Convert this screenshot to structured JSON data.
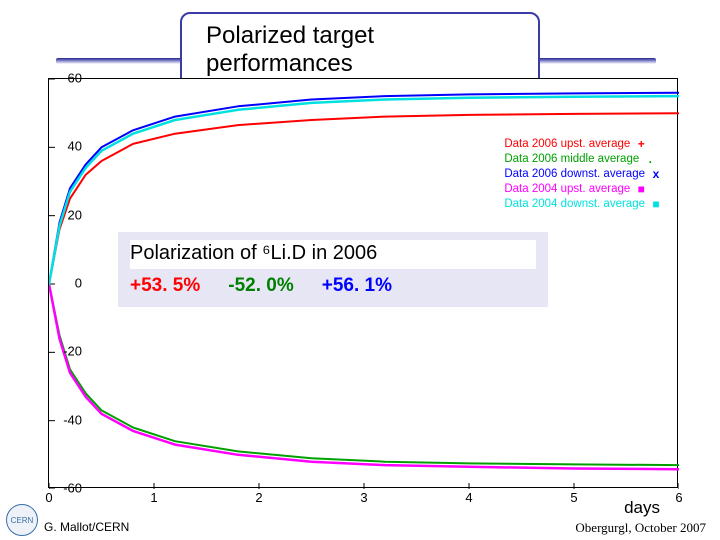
{
  "title": "Polarized target performances",
  "chart": {
    "type": "line",
    "background_color": "#ffffff",
    "axis_color": "#000000",
    "tick_fontsize": 13,
    "xlim": [
      0,
      6
    ],
    "ylim": [
      -60,
      60
    ],
    "xtick_step": 1,
    "xticks": [
      0,
      1,
      2,
      3,
      4,
      5,
      6
    ],
    "yticks": [
      -60,
      -40,
      -20,
      0,
      20,
      40,
      60
    ],
    "x_axis_label": "days",
    "series": [
      {
        "name": "Data 2006 upst. average",
        "color": "#ff0000",
        "marker": "+",
        "linewidth": 2,
        "x": [
          0,
          0.1,
          0.2,
          0.35,
          0.5,
          0.8,
          1.2,
          1.8,
          2.5,
          3.2,
          4.0,
          5.0,
          6.0
        ],
        "y": [
          0,
          16,
          25,
          32,
          36,
          41,
          44,
          46.5,
          48,
          49,
          49.5,
          49.8,
          50
        ]
      },
      {
        "name": "Data 2006 middle average",
        "color": "#00a000",
        "marker": ".",
        "linewidth": 2,
        "x": [
          0,
          0.1,
          0.2,
          0.35,
          0.5,
          0.8,
          1.2,
          1.8,
          2.5,
          3.2,
          4.0,
          5.0,
          6.0
        ],
        "y": [
          0,
          -15,
          -25,
          -32,
          -37,
          -42,
          -46,
          -49,
          -51,
          -52,
          -52.5,
          -52.8,
          -53
        ]
      },
      {
        "name": "Data 2006 downst. average",
        "color": "#0000ff",
        "marker": "x",
        "linewidth": 2,
        "x": [
          0,
          0.1,
          0.2,
          0.35,
          0.5,
          0.8,
          1.2,
          1.8,
          2.5,
          3.2,
          4.0,
          5.0,
          6.0
        ],
        "y": [
          0,
          18,
          28,
          35,
          40,
          45,
          49,
          52,
          54,
          55,
          55.5,
          55.8,
          56
        ]
      },
      {
        "name": "Data 2004 upst. average",
        "color": "#ff00ff",
        "marker": "■",
        "linewidth": 2.5,
        "x": [
          0,
          0.1,
          0.2,
          0.35,
          0.5,
          0.8,
          1.2,
          1.8,
          2.5,
          3.2,
          4.0,
          5.0,
          6.0
        ],
        "y": [
          0,
          -16,
          -26,
          -33,
          -38,
          -43,
          -47,
          -50,
          -52,
          -53,
          -53.5,
          -54,
          -54.2
        ]
      },
      {
        "name": "Data 2004 downst. average",
        "color": "#00e0e0",
        "marker": "■",
        "linewidth": 2.5,
        "x": [
          0,
          0.1,
          0.2,
          0.35,
          0.5,
          0.8,
          1.2,
          1.8,
          2.5,
          3.2,
          4.0,
          5.0,
          6.0
        ],
        "y": [
          0,
          17,
          27,
          34,
          39,
          44,
          48,
          51,
          53,
          54,
          54.5,
          54.8,
          55
        ]
      }
    ],
    "legend": {
      "position": "top-right",
      "fontsize": 11.5
    }
  },
  "overlay": {
    "background_color": "#e6e6f5",
    "title_bg": "#ffffff",
    "title": "Polarization of ⁶Li.D in 2006",
    "title_fontsize": 20,
    "values": [
      {
        "text": "+53. 5%",
        "color": "#ff0000"
      },
      {
        "text": "-52. 0%",
        "color": "#008000"
      },
      {
        "text": "+56. 1%",
        "color": "#0000ff"
      }
    ],
    "value_fontsize": 19
  },
  "footer": {
    "left": "G. Mallot/CERN",
    "right": "Obergurgl,  October 2007",
    "logo_text": "CERN"
  }
}
